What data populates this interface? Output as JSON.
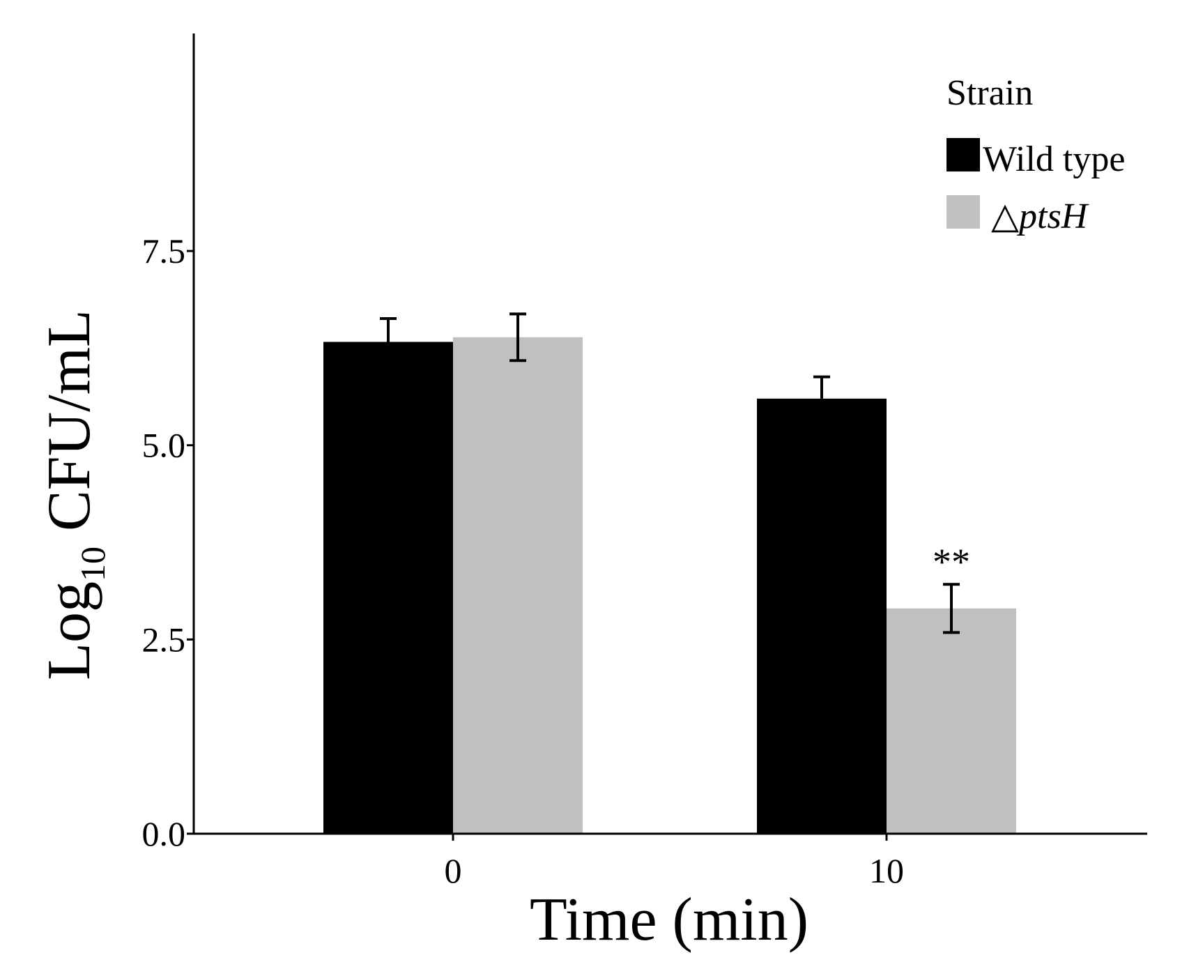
{
  "chart_data": {
    "type": "bar",
    "categories": [
      "0",
      "10"
    ],
    "series": [
      {
        "name": "Wild type",
        "name_italic": "",
        "color": "#000000",
        "values": [
          6.33,
          5.6
        ],
        "errors": [
          0.3,
          0.28
        ]
      },
      {
        "name": "△",
        "name_italic": "ptsH",
        "color": "#c0c0c0",
        "values": [
          6.39,
          2.9
        ],
        "errors": [
          0.3,
          0.31
        ]
      }
    ],
    "annotations": [
      {
        "text": "**",
        "series": 1,
        "category": 1
      }
    ],
    "xlabel": "Time (min)",
    "ylabel_main": "Log",
    "ylabel_sub": "10",
    "ylabel_rest": " CFU/mL",
    "ylim": [
      0,
      10.3
    ],
    "yticks": [
      0.0,
      2.5,
      5.0,
      7.5
    ],
    "ytick_labels": [
      "0.0",
      "2.5",
      "5.0",
      "7.5"
    ],
    "legend_title": "Strain",
    "legend_position": "top-right"
  }
}
